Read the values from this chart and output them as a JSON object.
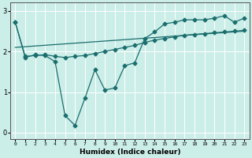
{
  "xlabel": "Humidex (Indice chaleur)",
  "background_color": "#cceee8",
  "grid_color": "#ffffff",
  "line_color": "#1a6e6e",
  "xlim": [
    -0.5,
    23.5
  ],
  "ylim": [
    -0.15,
    3.2
  ],
  "yticks": [
    0,
    1,
    2,
    3
  ],
  "xtick_labels": [
    "0",
    "1",
    "2",
    "3",
    "4",
    "5",
    "6",
    "7",
    "8",
    "9",
    "10",
    "11",
    "12",
    "13",
    "14",
    "15",
    "16",
    "17",
    "18",
    "19",
    "20",
    "21",
    "22",
    "23"
  ],
  "series_zigzag": {
    "x": [
      0,
      1,
      2,
      3,
      4,
      5,
      6,
      7,
      8,
      9,
      10,
      11,
      12,
      13,
      14,
      15,
      16,
      17,
      18,
      19,
      20,
      21,
      22,
      23
    ],
    "y": [
      2.72,
      1.85,
      1.92,
      1.9,
      1.75,
      0.42,
      0.18,
      0.85,
      1.55,
      1.05,
      1.1,
      1.65,
      1.72,
      2.32,
      2.48,
      2.68,
      2.72,
      2.78,
      2.78,
      2.78,
      2.82,
      2.88,
      2.72,
      2.82
    ]
  },
  "series_curve": {
    "x": [
      0,
      1,
      2,
      3,
      4,
      5,
      6,
      7,
      8,
      9,
      10,
      11,
      12,
      13,
      14,
      15,
      16,
      17,
      18,
      19,
      20,
      21,
      22,
      23
    ],
    "y": [
      2.72,
      1.88,
      1.9,
      1.92,
      1.88,
      1.85,
      1.88,
      1.9,
      1.95,
      2.0,
      2.05,
      2.1,
      2.15,
      2.22,
      2.28,
      2.32,
      2.36,
      2.4,
      2.42,
      2.44,
      2.46,
      2.48,
      2.5,
      2.52
    ]
  },
  "series_line": {
    "x": [
      0,
      23
    ],
    "y": [
      2.1,
      2.5
    ]
  }
}
